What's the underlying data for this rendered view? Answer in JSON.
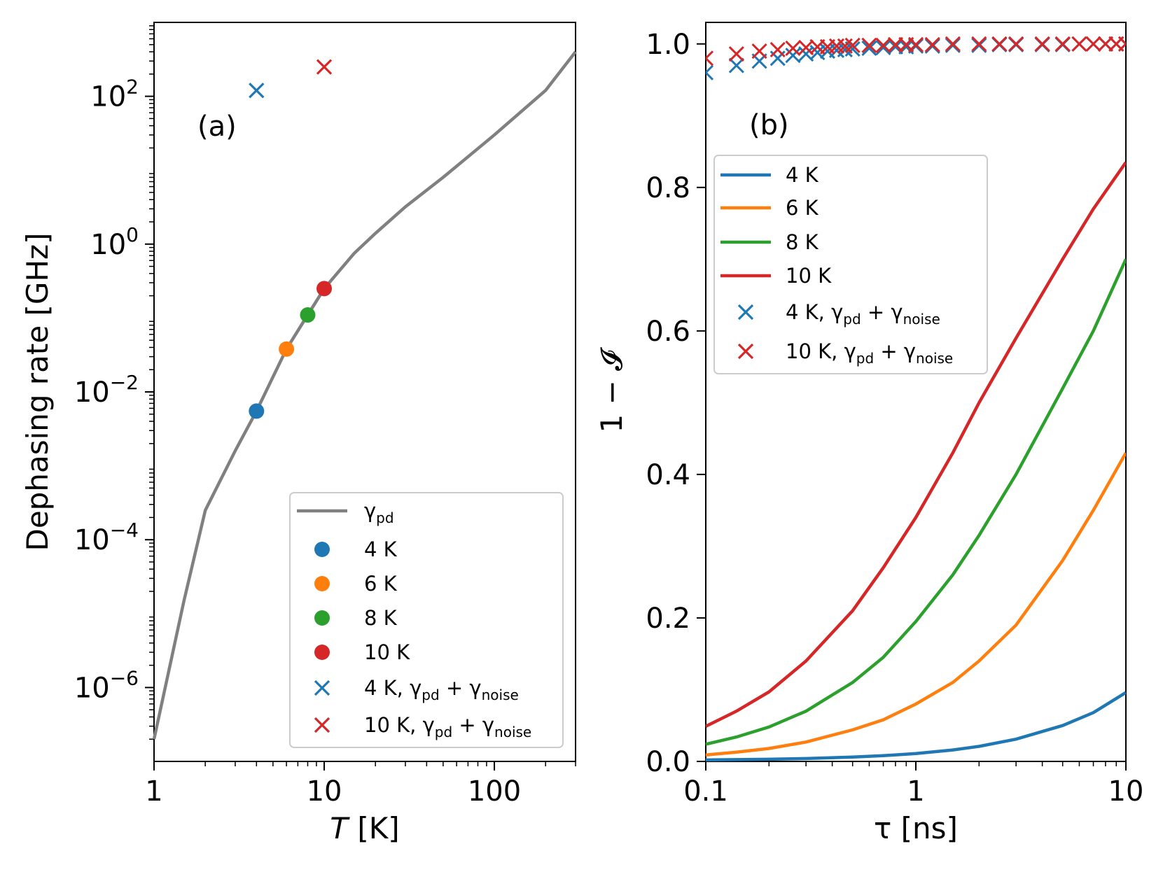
{
  "chart_data": [
    {
      "panel": "(a)",
      "type": "line",
      "x_scale": "log",
      "y_scale": "log",
      "xlabel": "T [K]",
      "ylabel": "Dephasing rate [GHz]",
      "xlim": [
        1,
        300
      ],
      "ylim": [
        1e-07,
        1000
      ],
      "x_ticks": [
        {
          "value": 1,
          "label": "1"
        },
        {
          "value": 10,
          "label": "10"
        },
        {
          "value": 100,
          "label": "100"
        }
      ],
      "y_ticks": [
        {
          "value": 1e-06,
          "base": "10",
          "exp": "−6"
        },
        {
          "value": 0.0001,
          "base": "10",
          "exp": "−4"
        },
        {
          "value": 0.01,
          "base": "10",
          "exp": "−2"
        },
        {
          "value": 1,
          "base": "10",
          "exp": "0"
        },
        {
          "value": 100,
          "base": "10",
          "exp": "2"
        }
      ],
      "series": [
        {
          "name": "γpd",
          "kind": "line",
          "color": "#808080",
          "x": [
            1,
            1.5,
            2,
            3,
            4,
            6,
            8,
            10,
            15,
            20,
            30,
            50,
            100,
            200,
            300
          ],
          "y": [
            2e-07,
            1.5e-05,
            0.00025,
            0.0016,
            0.0055,
            0.038,
            0.11,
            0.25,
            0.75,
            1.4,
            3.2,
            8,
            30,
            120,
            400
          ]
        },
        {
          "name": "4 K",
          "kind": "point",
          "marker": "circle",
          "color": "#1f77b4",
          "x": [
            4
          ],
          "y": [
            0.0055
          ]
        },
        {
          "name": "6 K",
          "kind": "point",
          "marker": "circle",
          "color": "#ff7f0e",
          "x": [
            6
          ],
          "y": [
            0.038
          ]
        },
        {
          "name": "8 K",
          "kind": "point",
          "marker": "circle",
          "color": "#2ca02c",
          "x": [
            8
          ],
          "y": [
            0.11
          ]
        },
        {
          "name": "10 K",
          "kind": "point",
          "marker": "circle",
          "color": "#d62728",
          "x": [
            10
          ],
          "y": [
            0.25
          ]
        },
        {
          "name": "4 K, γpd + γnoise",
          "kind": "point",
          "marker": "x",
          "color": "#1f77b4",
          "x": [
            4
          ],
          "y": [
            120
          ]
        },
        {
          "name": "10 K, γpd + γnoise",
          "kind": "point",
          "marker": "x",
          "color": "#d62728",
          "x": [
            10
          ],
          "y": [
            250
          ]
        }
      ],
      "legend": {
        "placement": "lower-right",
        "entries": [
          {
            "marker": "line",
            "color": "#808080",
            "label": "γ",
            "sub": "pd",
            "suffix": ""
          },
          {
            "marker": "circle",
            "color": "#1f77b4",
            "label": "4 K",
            "sub": "",
            "suffix": ""
          },
          {
            "marker": "circle",
            "color": "#ff7f0e",
            "label": "6 K",
            "sub": "",
            "suffix": ""
          },
          {
            "marker": "circle",
            "color": "#2ca02c",
            "label": "8 K",
            "sub": "",
            "suffix": ""
          },
          {
            "marker": "circle",
            "color": "#d62728",
            "label": "10 K",
            "sub": "",
            "suffix": ""
          },
          {
            "marker": "x",
            "color": "#1f77b4",
            "label": "4 K, γ",
            "sub": "pd",
            "suffix": " + γ",
            "sub2": "noise"
          },
          {
            "marker": "x",
            "color": "#d62728",
            "label": "10 K, γ",
            "sub": "pd",
            "suffix": " + γ",
            "sub2": "noise"
          }
        ]
      }
    },
    {
      "panel": "(b)",
      "type": "line",
      "x_scale": "log",
      "y_scale": "linear",
      "xlabel": "τ [ns]",
      "ylabel": "1 − 𝓘",
      "xlim": [
        0.1,
        10
      ],
      "ylim": [
        0,
        1.03
      ],
      "x_ticks": [
        {
          "value": 0.1,
          "label": "0.1"
        },
        {
          "value": 1,
          "label": "1"
        },
        {
          "value": 10,
          "label": "10"
        }
      ],
      "y_ticks": [
        {
          "value": 0,
          "label": "0.0"
        },
        {
          "value": 0.2,
          "label": "0.2"
        },
        {
          "value": 0.4,
          "label": "0.4"
        },
        {
          "value": 0.6,
          "label": "0.6"
        },
        {
          "value": 0.8,
          "label": "0.8"
        },
        {
          "value": 1.0,
          "label": "1.0"
        }
      ],
      "x": [
        0.1,
        0.14,
        0.2,
        0.3,
        0.5,
        0.7,
        1,
        1.5,
        2,
        3,
        5,
        7,
        10
      ],
      "series": [
        {
          "name": "4 K",
          "kind": "line",
          "color": "#1f77b4",
          "values": [
            0.002,
            0.0025,
            0.003,
            0.004,
            0.006,
            0.008,
            0.011,
            0.016,
            0.021,
            0.031,
            0.05,
            0.068,
            0.096
          ]
        },
        {
          "name": "6 K",
          "kind": "line",
          "color": "#ff7f0e",
          "values": [
            0.009,
            0.013,
            0.018,
            0.027,
            0.044,
            0.058,
            0.08,
            0.11,
            0.14,
            0.19,
            0.28,
            0.35,
            0.43
          ]
        },
        {
          "name": "8 K",
          "kind": "line",
          "color": "#2ca02c",
          "values": [
            0.024,
            0.034,
            0.048,
            0.07,
            0.11,
            0.145,
            0.195,
            0.26,
            0.315,
            0.4,
            0.52,
            0.6,
            0.7
          ]
        },
        {
          "name": "10 K",
          "kind": "line",
          "color": "#d62728",
          "values": [
            0.049,
            0.07,
            0.097,
            0.14,
            0.21,
            0.27,
            0.34,
            0.43,
            0.5,
            0.59,
            0.7,
            0.77,
            0.835
          ]
        },
        {
          "name": "4 K, γpd + γnoise",
          "kind": "scatter",
          "marker": "x",
          "color": "#1f77b4",
          "x": [
            0.1,
            0.14,
            0.18,
            0.22,
            0.26,
            0.3,
            0.34,
            0.38,
            0.42,
            0.46,
            0.5,
            0.6,
            0.7,
            0.8,
            0.9,
            1.0,
            1.2,
            1.5,
            2,
            2.5,
            3,
            4,
            5,
            6,
            7,
            8,
            9,
            10
          ],
          "values": [
            0.96,
            0.97,
            0.976,
            0.98,
            0.984,
            0.986,
            0.988,
            0.99,
            0.991,
            0.992,
            0.993,
            0.994,
            0.995,
            0.996,
            0.996,
            0.997,
            0.997,
            0.998,
            0.998,
            0.999,
            0.999,
            0.999,
            0.999,
            1.0,
            1.0,
            1.0,
            1.0,
            1.0
          ]
        },
        {
          "name": "10 K, γpd + γnoise",
          "kind": "scatter",
          "marker": "x",
          "color": "#d62728",
          "x": [
            0.1,
            0.14,
            0.18,
            0.22,
            0.26,
            0.3,
            0.34,
            0.38,
            0.42,
            0.46,
            0.5,
            0.6,
            0.7,
            0.8,
            0.9,
            1.0,
            1.2,
            1.5,
            2,
            2.5,
            3,
            4,
            5,
            6,
            7,
            8,
            9,
            10
          ],
          "values": [
            0.98,
            0.986,
            0.99,
            0.992,
            0.994,
            0.995,
            0.996,
            0.996,
            0.997,
            0.997,
            0.998,
            0.998,
            0.998,
            0.999,
            0.999,
            0.999,
            0.999,
            1.0,
            1.0,
            1.0,
            1.0,
            1.0,
            1.0,
            1.0,
            1.0,
            1.0,
            1.0,
            1.0
          ]
        }
      ],
      "legend": {
        "placement": "upper-left",
        "entries": [
          {
            "marker": "line",
            "color": "#1f77b4",
            "label": "4 K",
            "sub": "",
            "suffix": ""
          },
          {
            "marker": "line",
            "color": "#ff7f0e",
            "label": "6 K",
            "sub": "",
            "suffix": ""
          },
          {
            "marker": "line",
            "color": "#2ca02c",
            "label": "8 K",
            "sub": "",
            "suffix": ""
          },
          {
            "marker": "line",
            "color": "#d62728",
            "label": "10 K",
            "sub": "",
            "suffix": ""
          },
          {
            "marker": "x",
            "color": "#1f77b4",
            "label": "4 K, γ",
            "sub": "pd",
            "suffix": " + γ",
            "sub2": "noise"
          },
          {
            "marker": "x",
            "color": "#d62728",
            "label": "10 K, γ",
            "sub": "pd",
            "suffix": " + γ",
            "sub2": "noise"
          }
        ]
      }
    }
  ]
}
